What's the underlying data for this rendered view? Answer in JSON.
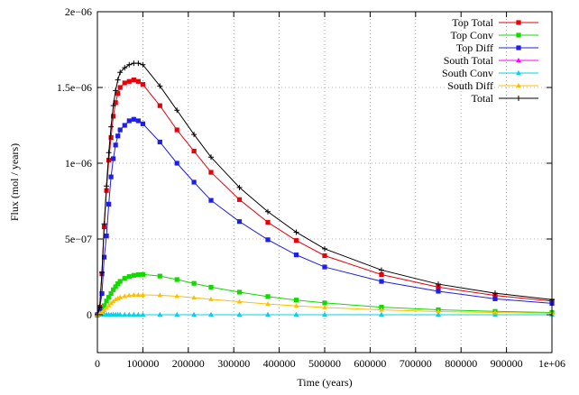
{
  "chart_data": {
    "type": "line",
    "xlabel": "Time (years)",
    "ylabel": "Flux (mol / years)",
    "xlim": [
      0,
      1000000
    ],
    "ylim": [
      -2.5e-07,
      2e-06
    ],
    "grid": true,
    "legend_position": "top-right",
    "x_ticks": [
      0,
      100000,
      200000,
      300000,
      400000,
      500000,
      600000,
      700000,
      800000,
      900000,
      1000000
    ],
    "x_tick_labels": [
      "0",
      "100000",
      "200000",
      "300000",
      "400000",
      "500000",
      "600000",
      "700000",
      "800000",
      "900000",
      "1e+06"
    ],
    "y_ticks": [
      0,
      5e-07,
      1e-06,
      1.5e-06,
      2e-06
    ],
    "y_tick_labels": [
      "0",
      "5e−07",
      "1e−06",
      "1.5e−06",
      "2e−06"
    ],
    "series": [
      {
        "name": "Top Total",
        "color": "#e8000b",
        "marker": "square",
        "x": [
          0,
          5000,
          10000,
          15000,
          20000,
          25000,
          30000,
          35000,
          40000,
          45000,
          50000,
          60000,
          70000,
          80000,
          90000,
          100000,
          137500,
          175000,
          212500,
          250000,
          312500,
          375000,
          437500,
          500000,
          625000,
          750000,
          875000,
          1000000
        ],
        "y": [
          0,
          5e-08,
          2.7e-07,
          5.8e-07,
          8.2e-07,
          1.02e-06,
          1.17e-06,
          1.31e-06,
          1.4e-06,
          1.46e-06,
          1.5e-06,
          1.53e-06,
          1.54e-06,
          1.55e-06,
          1.54e-06,
          1.52e-06,
          1.38e-06,
          1.22e-06,
          1.08e-06,
          9.4e-07,
          7.6e-07,
          6.1e-07,
          4.9e-07,
          3.9e-07,
          2.65e-07,
          1.82e-07,
          1.27e-07,
          9e-08
        ]
      },
      {
        "name": "Top Conv",
        "color": "#12d900",
        "marker": "square",
        "x": [
          0,
          5000,
          10000,
          15000,
          20000,
          25000,
          30000,
          35000,
          40000,
          45000,
          50000,
          60000,
          70000,
          80000,
          90000,
          100000,
          137500,
          175000,
          212500,
          250000,
          312500,
          375000,
          437500,
          500000,
          625000,
          750000,
          875000,
          1000000
        ],
        "y": [
          0,
          8e-09,
          3e-08,
          6e-08,
          9e-08,
          1.15e-07,
          1.4e-07,
          1.65e-07,
          1.85e-07,
          2.05e-07,
          2.2e-07,
          2.4e-07,
          2.52e-07,
          2.6e-07,
          2.65e-07,
          2.66e-07,
          2.55e-07,
          2.32e-07,
          2.07e-07,
          1.82e-07,
          1.49e-07,
          1.2e-07,
          9.7e-08,
          7.8e-08,
          5e-08,
          3.3e-08,
          2.2e-08,
          1.5e-08
        ]
      },
      {
        "name": "Top Diff",
        "color": "#1e1ee8",
        "marker": "square",
        "x": [
          0,
          5000,
          10000,
          15000,
          20000,
          25000,
          30000,
          35000,
          40000,
          45000,
          50000,
          60000,
          70000,
          80000,
          90000,
          100000,
          137500,
          175000,
          212500,
          250000,
          312500,
          375000,
          437500,
          500000,
          625000,
          750000,
          875000,
          1000000
        ],
        "y": [
          0,
          4e-08,
          1.4e-07,
          3.8e-07,
          5.2e-07,
          7.3e-07,
          9.1e-07,
          1.03e-06,
          1.12e-06,
          1.18e-06,
          1.22e-06,
          1.25e-06,
          1.28e-06,
          1.29e-06,
          1.28e-06,
          1.26e-06,
          1.14e-06,
          1e-06,
          8.75e-07,
          7.55e-07,
          6.15e-07,
          4.95e-07,
          3.95e-07,
          3.15e-07,
          2.2e-07,
          1.55e-07,
          1.05e-07,
          7.5e-08
        ]
      },
      {
        "name": "South Total",
        "color": "#ff00ff",
        "marker": "triangle",
        "x": [
          0,
          5000,
          10000,
          15000,
          20000,
          25000,
          30000,
          35000,
          40000,
          45000,
          50000,
          60000,
          70000,
          80000,
          90000,
          100000,
          137500,
          175000,
          212500,
          250000,
          312500,
          375000,
          437500,
          500000,
          625000,
          750000,
          875000,
          1000000
        ],
        "y": [
          0,
          0,
          0,
          0,
          0,
          0,
          0,
          0,
          0,
          0,
          0,
          0,
          0,
          0,
          0,
          0,
          0,
          0,
          0,
          0,
          0,
          0,
          0,
          0,
          0,
          0,
          0,
          0
        ]
      },
      {
        "name": "South Conv",
        "color": "#00d6e6",
        "marker": "triangle",
        "x": [
          0,
          5000,
          10000,
          15000,
          20000,
          25000,
          30000,
          35000,
          40000,
          45000,
          50000,
          60000,
          70000,
          80000,
          90000,
          100000,
          137500,
          175000,
          212500,
          250000,
          312500,
          375000,
          437500,
          500000,
          625000,
          750000,
          875000,
          1000000
        ],
        "y": [
          0,
          0,
          0,
          0,
          0,
          0,
          0,
          0,
          0,
          0,
          0,
          0,
          0,
          0,
          0,
          0,
          0,
          0,
          0,
          0,
          0,
          0,
          0,
          0,
          0,
          0,
          0,
          0
        ]
      },
      {
        "name": "South Diff",
        "color": "#ffbf00",
        "marker": "triangle",
        "x": [
          0,
          5000,
          10000,
          15000,
          20000,
          25000,
          30000,
          35000,
          40000,
          45000,
          50000,
          60000,
          70000,
          80000,
          90000,
          100000,
          137500,
          175000,
          212500,
          250000,
          312500,
          375000,
          437500,
          500000,
          625000,
          750000,
          875000,
          1000000
        ],
        "y": [
          0,
          5e-09,
          1.5e-08,
          3e-08,
          4.5e-08,
          6e-08,
          7.5e-08,
          8.8e-08,
          1e-07,
          1.08e-07,
          1.15e-07,
          1.22e-07,
          1.27e-07,
          1.3e-07,
          1.31e-07,
          1.31e-07,
          1.29e-07,
          1.22e-07,
          1.12e-07,
          1.02e-07,
          8.6e-08,
          7.1e-08,
          5.9e-08,
          4.8e-08,
          3.2e-08,
          2.1e-08,
          1.5e-08,
          1e-08
        ]
      },
      {
        "name": "Total",
        "color": "#000000",
        "marker": "plus",
        "x": [
          0,
          5000,
          10000,
          15000,
          20000,
          25000,
          30000,
          35000,
          40000,
          45000,
          50000,
          60000,
          70000,
          80000,
          90000,
          100000,
          137500,
          175000,
          212500,
          250000,
          312500,
          375000,
          437500,
          500000,
          625000,
          750000,
          875000,
          1000000
        ],
        "y": [
          0,
          5e-08,
          2.8e-07,
          6e-07,
          8.5e-07,
          1.07e-06,
          1.24e-06,
          1.38e-06,
          1.48e-06,
          1.55e-06,
          1.6e-06,
          1.63e-06,
          1.65e-06,
          1.66e-06,
          1.66e-06,
          1.65e-06,
          1.51e-06,
          1.35e-06,
          1.19e-06,
          1.04e-06,
          8.4e-07,
          6.8e-07,
          5.45e-07,
          4.35e-07,
          2.95e-07,
          2.02e-07,
          1.42e-07,
          1e-07
        ]
      }
    ]
  }
}
